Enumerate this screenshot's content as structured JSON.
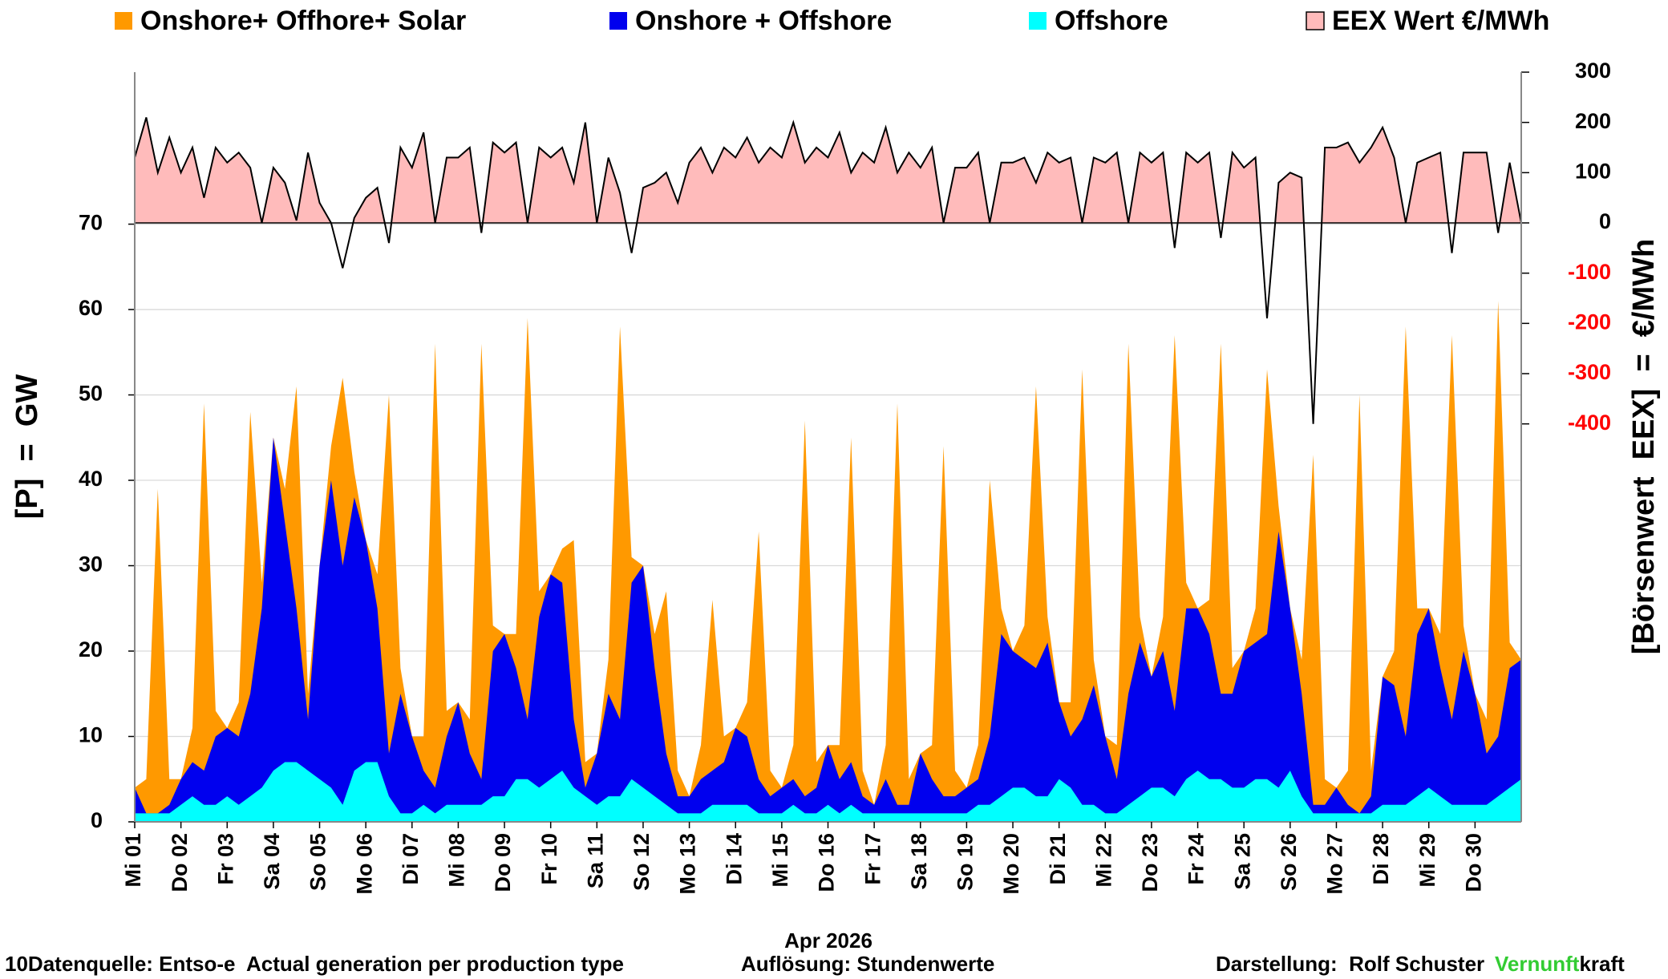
{
  "chart_data": {
    "type": "area",
    "xlabel": "Apr 2026",
    "ylabel": "[P]  =  GW",
    "y2label": "[Börsenwert  EEX]  =  €/MWh",
    "x": [
      1,
      1.25,
      1.5,
      1.75,
      2,
      2.25,
      2.5,
      2.75,
      3,
      3.25,
      3.5,
      3.75,
      4,
      4.25,
      4.5,
      4.75,
      5,
      5.25,
      5.5,
      5.75,
      6,
      6.25,
      6.5,
      6.75,
      7,
      7.25,
      7.5,
      7.75,
      8,
      8.25,
      8.5,
      8.75,
      9,
      9.25,
      9.5,
      9.75,
      10,
      10.25,
      10.5,
      10.75,
      11,
      11.25,
      11.5,
      11.75,
      12,
      12.25,
      12.5,
      12.75,
      13,
      13.25,
      13.5,
      13.75,
      14,
      14.25,
      14.5,
      14.75,
      15,
      15.25,
      15.5,
      15.75,
      16,
      16.25,
      16.5,
      16.75,
      17,
      17.25,
      17.5,
      17.75,
      18,
      18.25,
      18.5,
      18.75,
      19,
      19.25,
      19.5,
      19.75,
      20,
      20.25,
      20.5,
      20.75,
      21,
      21.25,
      21.5,
      21.75,
      22,
      22.25,
      22.5,
      22.75,
      23,
      23.25,
      23.5,
      23.75,
      24,
      24.25,
      24.5,
      24.75,
      25,
      25.25,
      25.5,
      25.75,
      26,
      26.25,
      26.5,
      26.75,
      27,
      27.25,
      27.5,
      27.75,
      28,
      28.25,
      28.5,
      28.75,
      29,
      29.25,
      29.5,
      29.75,
      30,
      30.25,
      30.5,
      30.75,
      31
    ],
    "xlim": [
      1,
      31
    ],
    "xticks": [
      {
        "value": 1,
        "label": "Mi 01"
      },
      {
        "value": 2,
        "label": "Do 02"
      },
      {
        "value": 3,
        "label": "Fr 03"
      },
      {
        "value": 4,
        "label": "Sa 04"
      },
      {
        "value": 5,
        "label": "So 05"
      },
      {
        "value": 6,
        "label": "Mo 06"
      },
      {
        "value": 7,
        "label": "Di 07"
      },
      {
        "value": 8,
        "label": "Mi 08"
      },
      {
        "value": 9,
        "label": "Do 09"
      },
      {
        "value": 10,
        "label": "Fr 10"
      },
      {
        "value": 11,
        "label": "Sa 11"
      },
      {
        "value": 12,
        "label": "So 12"
      },
      {
        "value": 13,
        "label": "Mo 13"
      },
      {
        "value": 14,
        "label": "Di 14"
      },
      {
        "value": 15,
        "label": "Mi 15"
      },
      {
        "value": 16,
        "label": "Do 16"
      },
      {
        "value": 17,
        "label": "Fr 17"
      },
      {
        "value": 18,
        "label": "Sa 18"
      },
      {
        "value": 19,
        "label": "So 19"
      },
      {
        "value": 20,
        "label": "Mo 20"
      },
      {
        "value": 21,
        "label": "Di 21"
      },
      {
        "value": 22,
        "label": "Mi 22"
      },
      {
        "value": 23,
        "label": "Do 23"
      },
      {
        "value": 24,
        "label": "Fr 24"
      },
      {
        "value": 25,
        "label": "Sa 25"
      },
      {
        "value": 26,
        "label": "So 26"
      },
      {
        "value": 27,
        "label": "Mo 27"
      },
      {
        "value": 28,
        "label": "Di 28"
      },
      {
        "value": 29,
        "label": "Mi 29"
      },
      {
        "value": 30,
        "label": "Do 30"
      }
    ],
    "ylim": [
      0,
      87.8
    ],
    "yticks": [
      0,
      10,
      20,
      30,
      40,
      50,
      60,
      70
    ],
    "y2lim": [
      -1192,
      300
    ],
    "y2ticks": [
      300,
      200,
      100,
      0,
      -100,
      -200,
      -300,
      -400
    ],
    "y2tick_negative_color": "#ff0000",
    "grid": true,
    "series": [
      {
        "name": "Onshore+ Offhore+ Solar",
        "color": "#ff9900",
        "values": [
          4,
          5,
          39,
          5,
          5,
          11,
          49,
          13,
          11,
          14,
          48,
          28,
          45,
          39,
          51,
          15,
          30,
          44,
          52,
          41,
          33,
          29,
          50,
          18,
          10,
          10,
          56,
          13,
          14,
          12,
          56,
          23,
          22,
          22,
          59,
          27,
          29,
          32,
          33,
          7,
          8,
          19,
          58,
          31,
          30,
          22,
          27,
          6,
          3,
          9,
          26,
          10,
          11,
          14,
          34,
          6,
          4,
          9,
          47,
          7,
          9,
          9,
          45,
          6,
          2,
          9,
          49,
          5,
          8,
          9,
          44,
          6,
          4,
          9,
          40,
          25,
          20,
          23,
          51,
          24,
          14,
          14,
          53,
          19,
          10,
          9,
          56,
          24,
          17,
          24,
          57,
          28,
          25,
          26,
          56,
          18,
          20,
          25,
          53,
          37,
          25,
          19,
          43,
          5,
          4,
          6,
          50,
          6,
          17,
          20,
          58,
          25,
          25,
          22,
          57,
          23,
          15,
          12,
          61,
          21,
          19
        ]
      },
      {
        "name": "Onshore + Offshore",
        "color": "#0000ee",
        "values": [
          4,
          1,
          1,
          2,
          5,
          7,
          6,
          10,
          11,
          10,
          15,
          25,
          45,
          35,
          25,
          12,
          30,
          40,
          30,
          38,
          33,
          25,
          8,
          15,
          10,
          6,
          4,
          10,
          14,
          8,
          5,
          20,
          22,
          18,
          12,
          24,
          29,
          28,
          12,
          4,
          8,
          15,
          12,
          28,
          30,
          18,
          8,
          3,
          3,
          5,
          6,
          7,
          11,
          10,
          5,
          3,
          4,
          5,
          3,
          4,
          9,
          5,
          7,
          3,
          2,
          5,
          2,
          2,
          8,
          5,
          3,
          3,
          4,
          5,
          10,
          22,
          20,
          19,
          18,
          21,
          14,
          10,
          12,
          16,
          10,
          5,
          15,
          21,
          17,
          20,
          13,
          25,
          25,
          22,
          15,
          15,
          20,
          21,
          22,
          34,
          25,
          15,
          2,
          2,
          4,
          2,
          1,
          3,
          17,
          16,
          10,
          22,
          25,
          18,
          12,
          20,
          15,
          8,
          10,
          18,
          19
        ]
      },
      {
        "name": "Offshore",
        "color": "#00ffff",
        "values": [
          1,
          1,
          1,
          1,
          2,
          3,
          2,
          2,
          3,
          2,
          3,
          4,
          6,
          7,
          7,
          6,
          5,
          4,
          2,
          6,
          7,
          7,
          3,
          1,
          1,
          2,
          1,
          2,
          2,
          2,
          2,
          3,
          3,
          5,
          5,
          4,
          5,
          6,
          4,
          3,
          2,
          3,
          3,
          5,
          4,
          3,
          2,
          1,
          1,
          1,
          2,
          2,
          2,
          2,
          1,
          1,
          1,
          2,
          1,
          1,
          2,
          1,
          2,
          1,
          1,
          1,
          1,
          1,
          1,
          1,
          1,
          1,
          1,
          2,
          2,
          3,
          4,
          4,
          3,
          3,
          5,
          4,
          2,
          2,
          1,
          1,
          2,
          3,
          4,
          4,
          3,
          5,
          6,
          5,
          5,
          4,
          4,
          5,
          5,
          4,
          6,
          3,
          1,
          1,
          1,
          1,
          1,
          1,
          2,
          2,
          2,
          3,
          4,
          3,
          2,
          2,
          2,
          2,
          3,
          4,
          5
        ]
      },
      {
        "name": "EEX Wert €/MWh",
        "color": "#ffbbbb",
        "axis": "y2",
        "values": [
          130,
          210,
          100,
          170,
          100,
          150,
          50,
          150,
          120,
          140,
          110,
          0,
          110,
          80,
          5,
          140,
          40,
          0,
          -90,
          10,
          50,
          70,
          -40,
          150,
          110,
          180,
          0,
          130,
          130,
          150,
          -20,
          160,
          140,
          160,
          0,
          150,
          130,
          150,
          80,
          200,
          0,
          130,
          60,
          -60,
          70,
          80,
          100,
          40,
          120,
          150,
          100,
          150,
          130,
          170,
          120,
          150,
          130,
          200,
          120,
          150,
          130,
          180,
          100,
          140,
          120,
          190,
          100,
          140,
          110,
          150,
          0,
          110,
          110,
          140,
          0,
          120,
          120,
          130,
          80,
          140,
          120,
          130,
          0,
          130,
          120,
          140,
          0,
          140,
          120,
          140,
          -50,
          140,
          120,
          140,
          -30,
          140,
          110,
          130,
          -190,
          80,
          100,
          90,
          -400,
          150,
          150,
          160,
          120,
          150,
          190,
          130,
          0,
          120,
          130,
          140,
          -60,
          140,
          140,
          140,
          -20,
          120,
          0
        ]
      }
    ],
    "footer": {
      "source": "10Datenquelle: Entso-e  Actual generation per production type",
      "resolution": "Auflösung: Stundenwerte",
      "author": "Darstellung:  Rolf Schuster",
      "brand_green": "Vernunft",
      "brand_black": "kraft"
    }
  }
}
